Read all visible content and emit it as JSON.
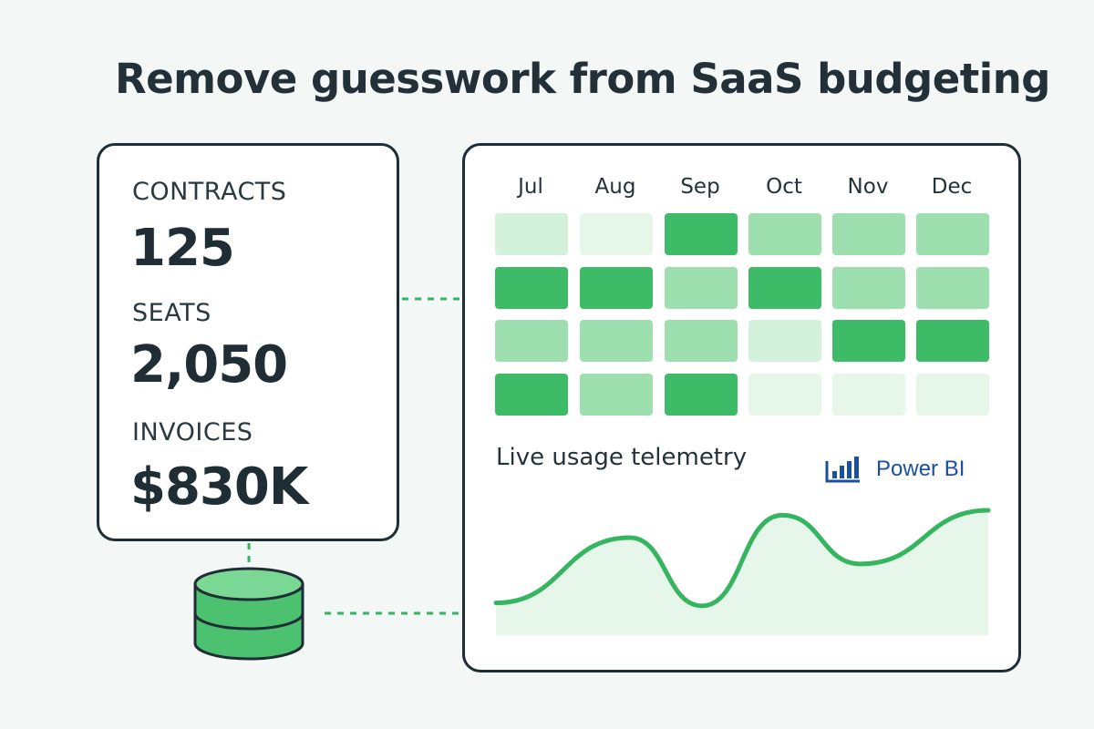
{
  "headline": "Remove guesswork from SaaS budgeting",
  "metrics": [
    {
      "label": "CONTRACTS",
      "value": "125"
    },
    {
      "label": "SEATS",
      "value": "2,050"
    },
    {
      "label": "INVOICES",
      "value": "$830K"
    }
  ],
  "heatmap": {
    "months": [
      "Jul",
      "Aug",
      "Sep",
      "Oct",
      "Nov",
      "Dec"
    ],
    "intensity_rows": [
      [
        1,
        0,
        4,
        2,
        2,
        2
      ],
      [
        4,
        4,
        2,
        4,
        2,
        2
      ],
      [
        2,
        2,
        2,
        1,
        4,
        4
      ],
      [
        4,
        2,
        4,
        0,
        0,
        0
      ]
    ],
    "palette": [
      "#e6f7ea",
      "#d4f1dc",
      "#9ddfae",
      "#67cd86",
      "#3dbb66"
    ]
  },
  "telemetry": {
    "title": "Live usage telemetry",
    "series_relative": [
      0.05,
      0.72,
      0.02,
      0.95,
      0.45,
      1.0
    ],
    "line_color": "#36b560",
    "fill_color": "#e6f6ea"
  },
  "brand": {
    "name": "Power BI",
    "icon": "power-bi-icon",
    "color": "#1b4fa0"
  },
  "connector_color": "#36b560",
  "database": {
    "icon": "database-icon",
    "color": "#4cc270"
  }
}
